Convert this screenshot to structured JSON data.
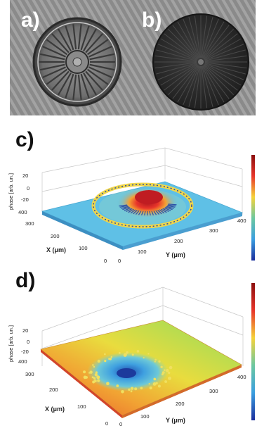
{
  "panels": {
    "a": {
      "letter": "a)"
    },
    "b": {
      "letter": "b)"
    },
    "c": {
      "letter": "c)"
    },
    "d": {
      "letter": "d)"
    }
  },
  "axes": {
    "z_label": "phase [arb. un.]",
    "x_label": "X (μm)",
    "y_label": "Y (μm)",
    "z_ticks": [
      "20",
      "0",
      "-20",
      "400"
    ],
    "x_ticks": [
      "300",
      "200",
      "100",
      "0"
    ],
    "y_ticks": [
      "0",
      "100",
      "200",
      "300",
      "400"
    ]
  },
  "chart_data": [
    {
      "type": "surface",
      "panel": "c",
      "z_ticks": [
        20,
        0,
        -20,
        400
      ],
      "x_ticks": [
        300,
        200,
        100,
        0
      ],
      "y_ticks": [
        0,
        100,
        200,
        300,
        400
      ],
      "colormap": "jet",
      "colors": {
        "background": "#5fc0e6",
        "peak": "#d9232a",
        "ring": "#f0d64a"
      }
    },
    {
      "type": "surface",
      "panel": "d",
      "z_ticks": [
        20,
        0,
        -20,
        400
      ],
      "x_ticks": [
        300,
        200,
        100,
        0
      ],
      "y_ticks": [
        0,
        100,
        200,
        300,
        400
      ],
      "colormap": "jet",
      "colors": {
        "high": "#e8402a",
        "mid": "#f2d838",
        "low": "#3fa0e0"
      }
    }
  ]
}
